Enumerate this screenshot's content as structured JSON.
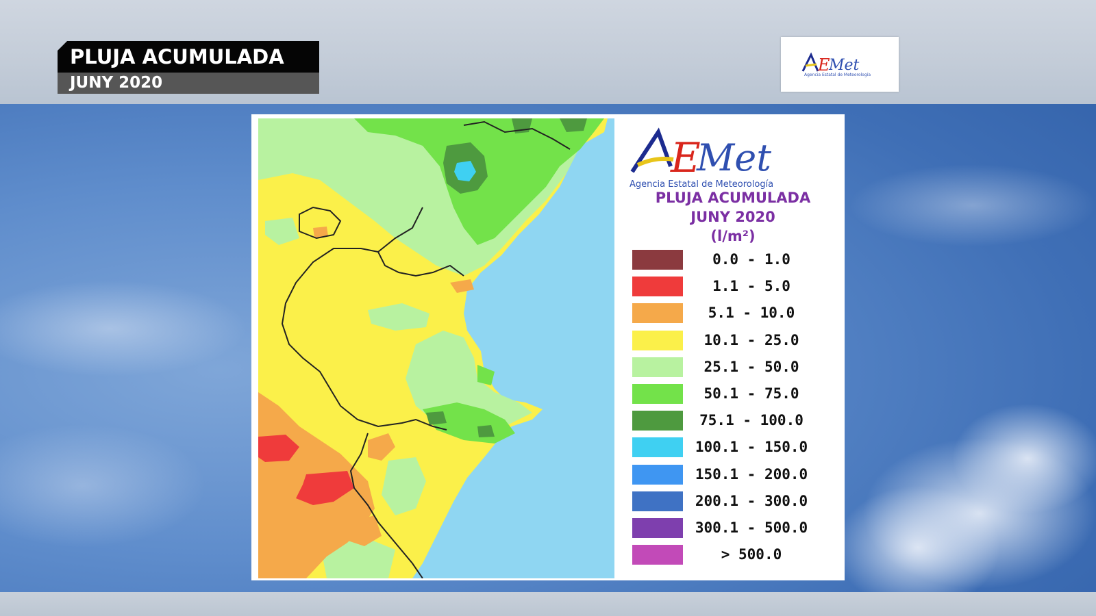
{
  "header": {
    "title": "PLUJA ACUMULADA",
    "subtitle": "JUNY 2020"
  },
  "logo": {
    "brand": "AEMet",
    "agency": "Agencia Estatal de Meteorología",
    "colors": [
      "#1c2b8f",
      "#e8c51a",
      "#d9261c",
      "#2f4fb0"
    ]
  },
  "map": {
    "title_line1": "PLUJA ACUMULADA",
    "title_line2": "JUNY 2020",
    "unit": "(l/m²)",
    "sea_color": "#8fd6f2",
    "legend": [
      {
        "range": "0.0 - 1.0",
        "color": "#8b3a3f"
      },
      {
        "range": "1.1 - 5.0",
        "color": "#ef3b3b"
      },
      {
        "range": "5.1 - 10.0",
        "color": "#f5a94a"
      },
      {
        "range": "10.1 - 25.0",
        "color": "#fbf04a"
      },
      {
        "range": "25.1 - 50.0",
        "color": "#b8f2a0"
      },
      {
        "range": "50.1 - 75.0",
        "color": "#73e24a"
      },
      {
        "range": "75.1 - 100.0",
        "color": "#4e9a3f"
      },
      {
        "range": "100.1 - 150.0",
        "color": "#3fd0f2"
      },
      {
        "range": "150.1 - 200.0",
        "color": "#3f96f2"
      },
      {
        "range": "200.1 - 300.0",
        "color": "#3f72c4"
      },
      {
        "range": "300.1 - 500.0",
        "color": "#7e3fae"
      },
      {
        "range": "> 500.0",
        "color": "#c24ab8"
      }
    ]
  }
}
